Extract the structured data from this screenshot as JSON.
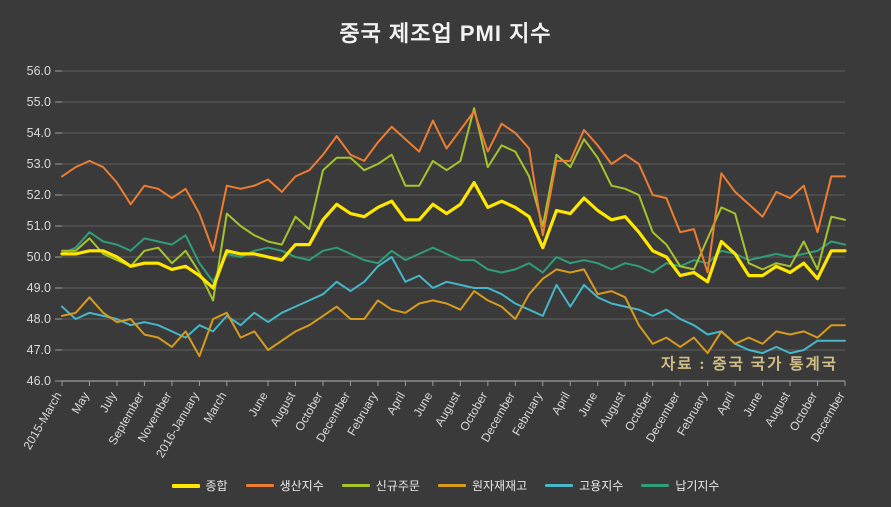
{
  "window": {
    "background": "#3a3a3a"
  },
  "chart_data": {
    "type": "line",
    "title": "중국 제조업 PMI 지수",
    "source_note": "자료 : 중국 국가 통계국",
    "ylim": [
      46.0,
      56.0
    ],
    "y_tick_step": 1.0,
    "y_tick_labels": [
      "56.0",
      "55.0",
      "54.0",
      "53.0",
      "52.0",
      "51.0",
      "50.0",
      "49.0",
      "48.0",
      "47.0",
      "46.0"
    ],
    "n_points": 58,
    "grid": true,
    "legend_position": "bottom",
    "x_tick_labels": [
      {
        "i": 0,
        "label": "2015-March"
      },
      {
        "i": 2,
        "label": "May"
      },
      {
        "i": 4,
        "label": "July"
      },
      {
        "i": 6,
        "label": "September"
      },
      {
        "i": 8,
        "label": "November"
      },
      {
        "i": 10,
        "label": "2016-January"
      },
      {
        "i": 12,
        "label": "March"
      },
      {
        "i": 15,
        "label": "June"
      },
      {
        "i": 17,
        "label": "August"
      },
      {
        "i": 19,
        "label": "October"
      },
      {
        "i": 21,
        "label": "December"
      },
      {
        "i": 23,
        "label": "February"
      },
      {
        "i": 25,
        "label": "April"
      },
      {
        "i": 27,
        "label": "June"
      },
      {
        "i": 29,
        "label": "August"
      },
      {
        "i": 31,
        "label": "October"
      },
      {
        "i": 33,
        "label": "December"
      },
      {
        "i": 35,
        "label": "February"
      },
      {
        "i": 37,
        "label": "April"
      },
      {
        "i": 39,
        "label": "June"
      },
      {
        "i": 41,
        "label": "August"
      },
      {
        "i": 43,
        "label": "October"
      },
      {
        "i": 45,
        "label": "December"
      },
      {
        "i": 47,
        "label": "February"
      },
      {
        "i": 49,
        "label": "April"
      },
      {
        "i": 51,
        "label": "June"
      },
      {
        "i": 53,
        "label": "August"
      },
      {
        "i": 55,
        "label": "October"
      },
      {
        "i": 57,
        "label": "December"
      }
    ],
    "colors": {
      "grid": "#5d5d5d",
      "axis": "#9e9e9e",
      "tick_text": "#d9d9d9",
      "title_text": "#f2f2f2",
      "legend_text": "#e8e8e8",
      "source_text": "#d2bf86"
    },
    "series": [
      {
        "key": "composite",
        "name": "종합",
        "color": "#ffe700",
        "width": 3.2,
        "values": [
          50.1,
          50.1,
          50.2,
          50.2,
          50.0,
          49.7,
          49.8,
          49.8,
          49.6,
          49.7,
          49.4,
          49.0,
          50.2,
          50.1,
          50.1,
          50.0,
          49.9,
          50.4,
          50.4,
          51.2,
          51.7,
          51.4,
          51.3,
          51.6,
          51.8,
          51.2,
          51.2,
          51.7,
          51.4,
          51.7,
          52.4,
          51.6,
          51.8,
          51.6,
          51.3,
          50.3,
          51.5,
          51.4,
          51.9,
          51.5,
          51.2,
          51.3,
          50.8,
          50.2,
          50.0,
          49.4,
          49.5,
          49.2,
          50.5,
          50.1,
          49.4,
          49.4,
          49.7,
          49.5,
          49.8,
          49.3,
          50.2,
          50.2
        ]
      },
      {
        "key": "production",
        "name": "생산지수",
        "color": "#ed7d31",
        "width": 2,
        "values": [
          52.6,
          52.9,
          53.1,
          52.9,
          52.4,
          51.7,
          52.3,
          52.2,
          51.9,
          52.2,
          51.4,
          50.2,
          52.3,
          52.2,
          52.3,
          52.5,
          52.1,
          52.6,
          52.8,
          53.3,
          53.9,
          53.3,
          53.1,
          53.7,
          54.2,
          53.8,
          53.4,
          54.4,
          53.5,
          54.1,
          54.7,
          53.4,
          54.3,
          54.0,
          53.5,
          50.7,
          53.1,
          53.1,
          54.1,
          53.6,
          53.0,
          53.3,
          53.0,
          52.0,
          51.9,
          50.8,
          50.9,
          49.5,
          52.7,
          52.1,
          51.7,
          51.3,
          52.1,
          51.9,
          52.3,
          50.8,
          52.6,
          52.6
        ]
      },
      {
        "key": "new-orders",
        "name": "신규주문",
        "color": "#a5c42c",
        "width": 2,
        "values": [
          50.2,
          50.2,
          50.6,
          50.1,
          49.9,
          49.7,
          50.2,
          50.3,
          49.8,
          50.2,
          49.5,
          48.6,
          51.4,
          51.0,
          50.7,
          50.5,
          50.4,
          51.3,
          50.9,
          52.8,
          53.2,
          53.2,
          52.8,
          53.0,
          53.3,
          52.3,
          52.3,
          53.1,
          52.8,
          53.1,
          54.8,
          52.9,
          53.6,
          53.4,
          52.6,
          51.0,
          53.3,
          52.9,
          53.8,
          53.2,
          52.3,
          52.2,
          52.0,
          50.8,
          50.4,
          49.7,
          49.6,
          50.6,
          51.6,
          51.4,
          49.8,
          49.6,
          49.8,
          49.7,
          50.5,
          49.6,
          51.3,
          51.2
        ]
      },
      {
        "key": "raw-materials-inventory",
        "name": "원자재재고",
        "color": "#d79b1e",
        "width": 2,
        "values": [
          48.1,
          48.2,
          48.7,
          48.2,
          47.9,
          48.0,
          47.5,
          47.4,
          47.1,
          47.6,
          46.8,
          48.0,
          48.2,
          47.4,
          47.6,
          47.0,
          47.3,
          47.6,
          47.8,
          48.1,
          48.4,
          48.0,
          48.0,
          48.6,
          48.3,
          48.2,
          48.5,
          48.6,
          48.5,
          48.3,
          48.9,
          48.6,
          48.4,
          48.0,
          48.8,
          49.3,
          49.6,
          49.5,
          49.6,
          48.8,
          48.9,
          48.7,
          47.8,
          47.2,
          47.4,
          47.1,
          47.4,
          46.9,
          47.6,
          47.2,
          47.4,
          47.2,
          47.6,
          47.5,
          47.6,
          47.4,
          47.8,
          47.8
        ]
      },
      {
        "key": "employment",
        "name": "고용지수",
        "color": "#45b7c9",
        "width": 2,
        "values": [
          48.4,
          48.0,
          48.2,
          48.1,
          48.0,
          47.8,
          47.9,
          47.8,
          47.6,
          47.4,
          47.8,
          47.6,
          48.1,
          47.8,
          48.2,
          47.9,
          48.2,
          48.4,
          48.6,
          48.8,
          49.2,
          48.9,
          49.2,
          49.7,
          50.0,
          49.2,
          49.4,
          49.0,
          49.2,
          49.1,
          49.0,
          49.0,
          48.8,
          48.5,
          48.3,
          48.1,
          49.1,
          48.4,
          49.1,
          48.7,
          48.5,
          48.4,
          48.3,
          48.1,
          48.3,
          48.0,
          47.8,
          47.5,
          47.6,
          47.2,
          47.0,
          46.9,
          47.1,
          46.9,
          47.0,
          47.3,
          47.3,
          47.3
        ]
      },
      {
        "key": "delivery",
        "name": "납기지수",
        "color": "#2f9d7a",
        "width": 2,
        "values": [
          50.1,
          50.3,
          50.8,
          50.5,
          50.4,
          50.2,
          50.6,
          50.5,
          50.4,
          50.7,
          49.8,
          49.2,
          50.1,
          50.0,
          50.2,
          50.3,
          50.2,
          50.0,
          49.9,
          50.2,
          50.3,
          50.1,
          49.9,
          49.8,
          50.2,
          49.9,
          50.1,
          50.3,
          50.1,
          49.9,
          49.9,
          49.6,
          49.5,
          49.6,
          49.8,
          49.5,
          50.0,
          49.8,
          49.9,
          49.8,
          49.6,
          49.8,
          49.7,
          49.5,
          49.8,
          49.7,
          49.9,
          49.8,
          50.2,
          50.1,
          49.9,
          50.0,
          50.1,
          50.0,
          50.1,
          50.2,
          50.5,
          50.4
        ]
      }
    ]
  }
}
